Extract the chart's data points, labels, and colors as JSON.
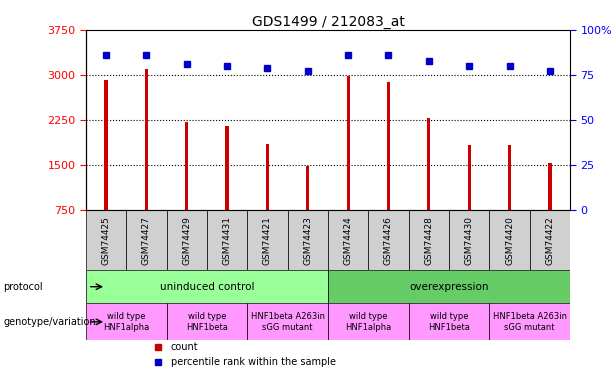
{
  "title": "GDS1499 / 212083_at",
  "samples": [
    "GSM74425",
    "GSM74427",
    "GSM74429",
    "GSM74431",
    "GSM74421",
    "GSM74423",
    "GSM74424",
    "GSM74426",
    "GSM74428",
    "GSM74430",
    "GSM74420",
    "GSM74422"
  ],
  "counts": [
    2920,
    3100,
    2220,
    2150,
    1850,
    1480,
    2990,
    2880,
    2280,
    1840,
    1840,
    1530
  ],
  "percentiles": [
    86,
    86,
    81,
    80,
    79,
    77,
    86,
    86,
    83,
    80,
    80,
    77
  ],
  "ylim_left": [
    750,
    3750
  ],
  "ylim_right": [
    0,
    100
  ],
  "yticks_left": [
    750,
    1500,
    2250,
    3000,
    3750
  ],
  "yticks_right": [
    0,
    25,
    50,
    75,
    100
  ],
  "bar_color": "#cc0000",
  "dot_color": "#0000cc",
  "dot_size": 5,
  "bar_width": 0.08,
  "grid_ticks": [
    1500,
    2250,
    3000
  ],
  "protocol_groups": [
    {
      "label": "uninduced control",
      "start": 0,
      "end": 5,
      "color": "#99ff99"
    },
    {
      "label": "overexpression",
      "start": 6,
      "end": 11,
      "color": "#66cc66"
    }
  ],
  "genotype_groups": [
    {
      "label": "wild type\nHNF1alpha",
      "start": 0,
      "end": 1,
      "color": "#ff99ff"
    },
    {
      "label": "wild type\nHNF1beta",
      "start": 2,
      "end": 3,
      "color": "#ff99ff"
    },
    {
      "label": "HNF1beta A263in\nsGG mutant",
      "start": 4,
      "end": 5,
      "color": "#ff99ff"
    },
    {
      "label": "wild type\nHNF1alpha",
      "start": 6,
      "end": 7,
      "color": "#ff99ff"
    },
    {
      "label": "wild type\nHNF1beta",
      "start": 8,
      "end": 9,
      "color": "#ff99ff"
    },
    {
      "label": "HNF1beta A263in\nsGG mutant",
      "start": 10,
      "end": 11,
      "color": "#ff99ff"
    }
  ],
  "xtick_bg": "#d0d0d0",
  "legend_items": [
    {
      "color": "#cc0000",
      "label": "count"
    },
    {
      "color": "#0000cc",
      "label": "percentile rank within the sample"
    }
  ]
}
